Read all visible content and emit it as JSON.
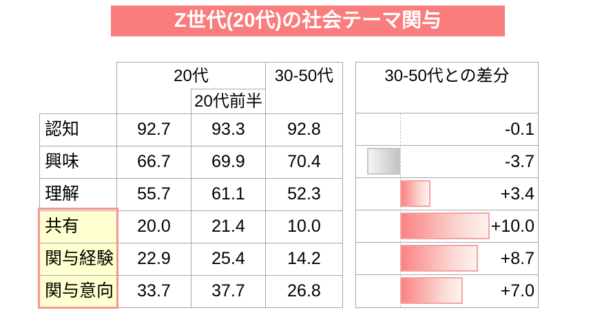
{
  "title": "Z世代(20代)の社会テーマ関与",
  "colors": {
    "title_bg": "#f97d7d",
    "grid_line": "#a6a6a6",
    "highlight_fill": "#ffffcf",
    "highlight_border": "#f99393",
    "positive_bar": "#f98383",
    "negative_bar": "#c3c3c3"
  },
  "table": {
    "col_headers": {
      "age20": "20代",
      "age20_early": "20代前半",
      "age30_50": "30-50代"
    },
    "rows": [
      {
        "label": "認知",
        "v20": "92.7",
        "v20e": "93.3",
        "v3050": "92.8",
        "highlight": false
      },
      {
        "label": "興味",
        "v20": "66.7",
        "v20e": "69.9",
        "v3050": "70.4",
        "highlight": false
      },
      {
        "label": "理解",
        "v20": "55.7",
        "v20e": "61.1",
        "v3050": "52.3",
        "highlight": false
      },
      {
        "label": "共有",
        "v20": "20.0",
        "v20e": "21.4",
        "v3050": "10.0",
        "highlight": true
      },
      {
        "label": "関与経験",
        "v20": "22.9",
        "v20e": "25.4",
        "v3050": "14.2",
        "highlight": true
      },
      {
        "label": "関与意向",
        "v20": "33.7",
        "v20e": "37.7",
        "v3050": "26.8",
        "highlight": true
      }
    ]
  },
  "diff_panel": {
    "header": "30-50代との差分",
    "values": [
      -0.1,
      -3.7,
      3.4,
      10.0,
      8.7,
      7.0
    ],
    "labels": [
      "-0.1",
      "-3.7",
      "+3.4",
      "+10.0",
      "+8.7",
      "+7.0"
    ]
  },
  "chart_data": {
    "type": "bar",
    "orientation": "horizontal",
    "title": "Z世代(20代)の社会テーマ関与",
    "categories": [
      "認知",
      "興味",
      "理解",
      "共有",
      "関与経験",
      "関与意向"
    ],
    "series": [
      {
        "name": "20代",
        "values": [
          92.7,
          66.7,
          55.7,
          20.0,
          22.9,
          33.7
        ]
      },
      {
        "name": "20代前半",
        "values": [
          93.3,
          69.9,
          61.1,
          21.4,
          25.4,
          37.7
        ]
      },
      {
        "name": "30-50代",
        "values": [
          92.8,
          70.4,
          52.3,
          10.0,
          14.2,
          26.8
        ]
      },
      {
        "name": "30-50代との差分",
        "values": [
          -0.1,
          -3.7,
          3.4,
          10.0,
          8.7,
          7.0
        ]
      }
    ],
    "diff_axis": {
      "zero_line": true,
      "style": "dashed"
    },
    "highlighted_categories": [
      "共有",
      "関与経験",
      "関与意向"
    ],
    "legend_position": "none",
    "grid": true
  }
}
